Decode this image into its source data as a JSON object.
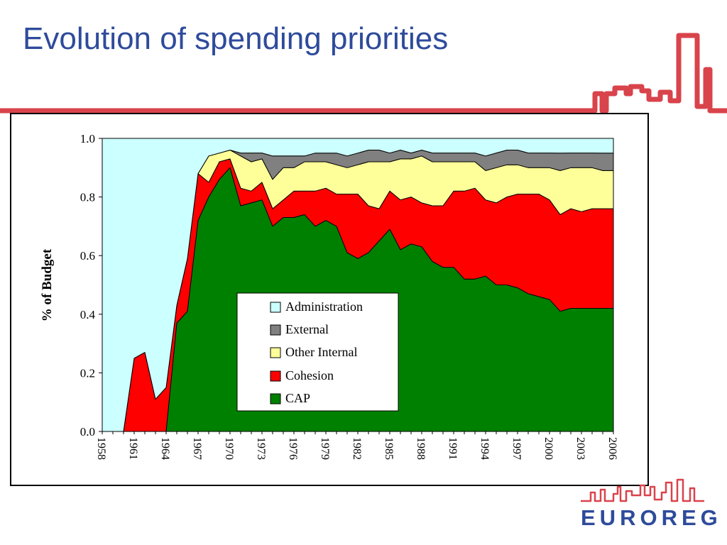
{
  "slide": {
    "title": "Evolution of spending priorities",
    "accent_color": "#d9434b",
    "title_color": "#2e4b9b"
  },
  "logo": {
    "text": "EUROREG",
    "color": "#2e4b9b",
    "skyline_color": "#d9434b"
  },
  "chart_data": {
    "type": "area",
    "stacked": true,
    "title": "",
    "xlabel": "",
    "ylabel": "% of Budget",
    "ylim": [
      0,
      1
    ],
    "yticks": [
      "0.0",
      "0.2",
      "0.4",
      "0.6",
      "0.8",
      "1.0"
    ],
    "xticks": [
      "1958",
      "1961",
      "1964",
      "1967",
      "1970",
      "1973",
      "1976",
      "1979",
      "1982",
      "1985",
      "1988",
      "1991",
      "1994",
      "1997",
      "2000",
      "2003",
      "2006"
    ],
    "x": [
      1958,
      1959,
      1960,
      1961,
      1962,
      1963,
      1964,
      1965,
      1966,
      1967,
      1968,
      1969,
      1970,
      1971,
      1972,
      1973,
      1974,
      1975,
      1976,
      1977,
      1978,
      1979,
      1980,
      1981,
      1982,
      1983,
      1984,
      1985,
      1986,
      1987,
      1988,
      1989,
      1990,
      1991,
      1992,
      1993,
      1994,
      1995,
      1996,
      1997,
      1998,
      1999,
      2000,
      2001,
      2002,
      2003,
      2004,
      2005,
      2006
    ],
    "legend_position": "center",
    "series": [
      {
        "name": "CAP",
        "color": "#008000",
        "values": [
          0,
          0,
          0,
          0,
          0,
          0,
          0,
          0.37,
          0.41,
          0.72,
          0.8,
          0.86,
          0.9,
          0.77,
          0.78,
          0.79,
          0.7,
          0.73,
          0.73,
          0.74,
          0.7,
          0.72,
          0.7,
          0.61,
          0.59,
          0.61,
          0.65,
          0.69,
          0.62,
          0.64,
          0.63,
          0.58,
          0.56,
          0.56,
          0.52,
          0.52,
          0.53,
          0.5,
          0.5,
          0.49,
          0.47,
          0.46,
          0.45,
          0.41,
          0.42,
          0.42,
          0.42,
          0.42,
          0.42
        ]
      },
      {
        "name": "Cohesion",
        "color": "#ff0000",
        "values": [
          0,
          0,
          0,
          0.25,
          0.27,
          0.11,
          0.15,
          0.06,
          0.18,
          0.16,
          0.05,
          0.06,
          0.03,
          0.06,
          0.04,
          0.06,
          0.06,
          0.06,
          0.09,
          0.08,
          0.12,
          0.11,
          0.11,
          0.2,
          0.22,
          0.16,
          0.11,
          0.13,
          0.17,
          0.16,
          0.15,
          0.19,
          0.21,
          0.26,
          0.3,
          0.31,
          0.26,
          0.28,
          0.3,
          0.32,
          0.34,
          0.35,
          0.34,
          0.33,
          0.34,
          0.33,
          0.34,
          0.34,
          0.34
        ]
      },
      {
        "name": "Other Internal",
        "color": "#ffff99",
        "values": [
          0,
          0,
          0,
          0,
          0,
          0,
          0,
          0,
          0,
          0,
          0.09,
          0.03,
          0.03,
          0.11,
          0.1,
          0.08,
          0.1,
          0.11,
          0.08,
          0.1,
          0.1,
          0.09,
          0.1,
          0.09,
          0.1,
          0.15,
          0.16,
          0.1,
          0.14,
          0.13,
          0.16,
          0.15,
          0.15,
          0.1,
          0.1,
          0.09,
          0.1,
          0.12,
          0.11,
          0.1,
          0.09,
          0.09,
          0.11,
          0.15,
          0.14,
          0.15,
          0.14,
          0.13,
          0.13
        ]
      },
      {
        "name": "External",
        "color": "#808080",
        "values": [
          0,
          0,
          0,
          0,
          0,
          0,
          0,
          0,
          0,
          0,
          0,
          0,
          0,
          0.01,
          0.03,
          0.02,
          0.08,
          0.04,
          0.04,
          0.02,
          0.03,
          0.03,
          0.04,
          0.04,
          0.04,
          0.04,
          0.04,
          0.03,
          0.03,
          0.02,
          0.02,
          0.03,
          0.03,
          0.03,
          0.03,
          0.03,
          0.05,
          0.05,
          0.05,
          0.05,
          0.05,
          0.05,
          0.05,
          0.06,
          0.05,
          0.05,
          0.05,
          0.06,
          0.06
        ]
      },
      {
        "name": "Administration",
        "color": "#ccffff",
        "values": [
          1,
          1,
          1,
          0.75,
          0.73,
          0.89,
          0.85,
          0.57,
          0.41,
          0.12,
          0.06,
          0.05,
          0.04,
          0.05,
          0.05,
          0.05,
          0.06,
          0.06,
          0.06,
          0.06,
          0.05,
          0.05,
          0.05,
          0.06,
          0.05,
          0.04,
          0.04,
          0.05,
          0.04,
          0.05,
          0.04,
          0.05,
          0.05,
          0.05,
          0.05,
          0.05,
          0.06,
          0.05,
          0.04,
          0.04,
          0.05,
          0.05,
          0.05,
          0.05,
          0.05,
          0.05,
          0.05,
          0.05,
          0.05
        ]
      }
    ]
  }
}
